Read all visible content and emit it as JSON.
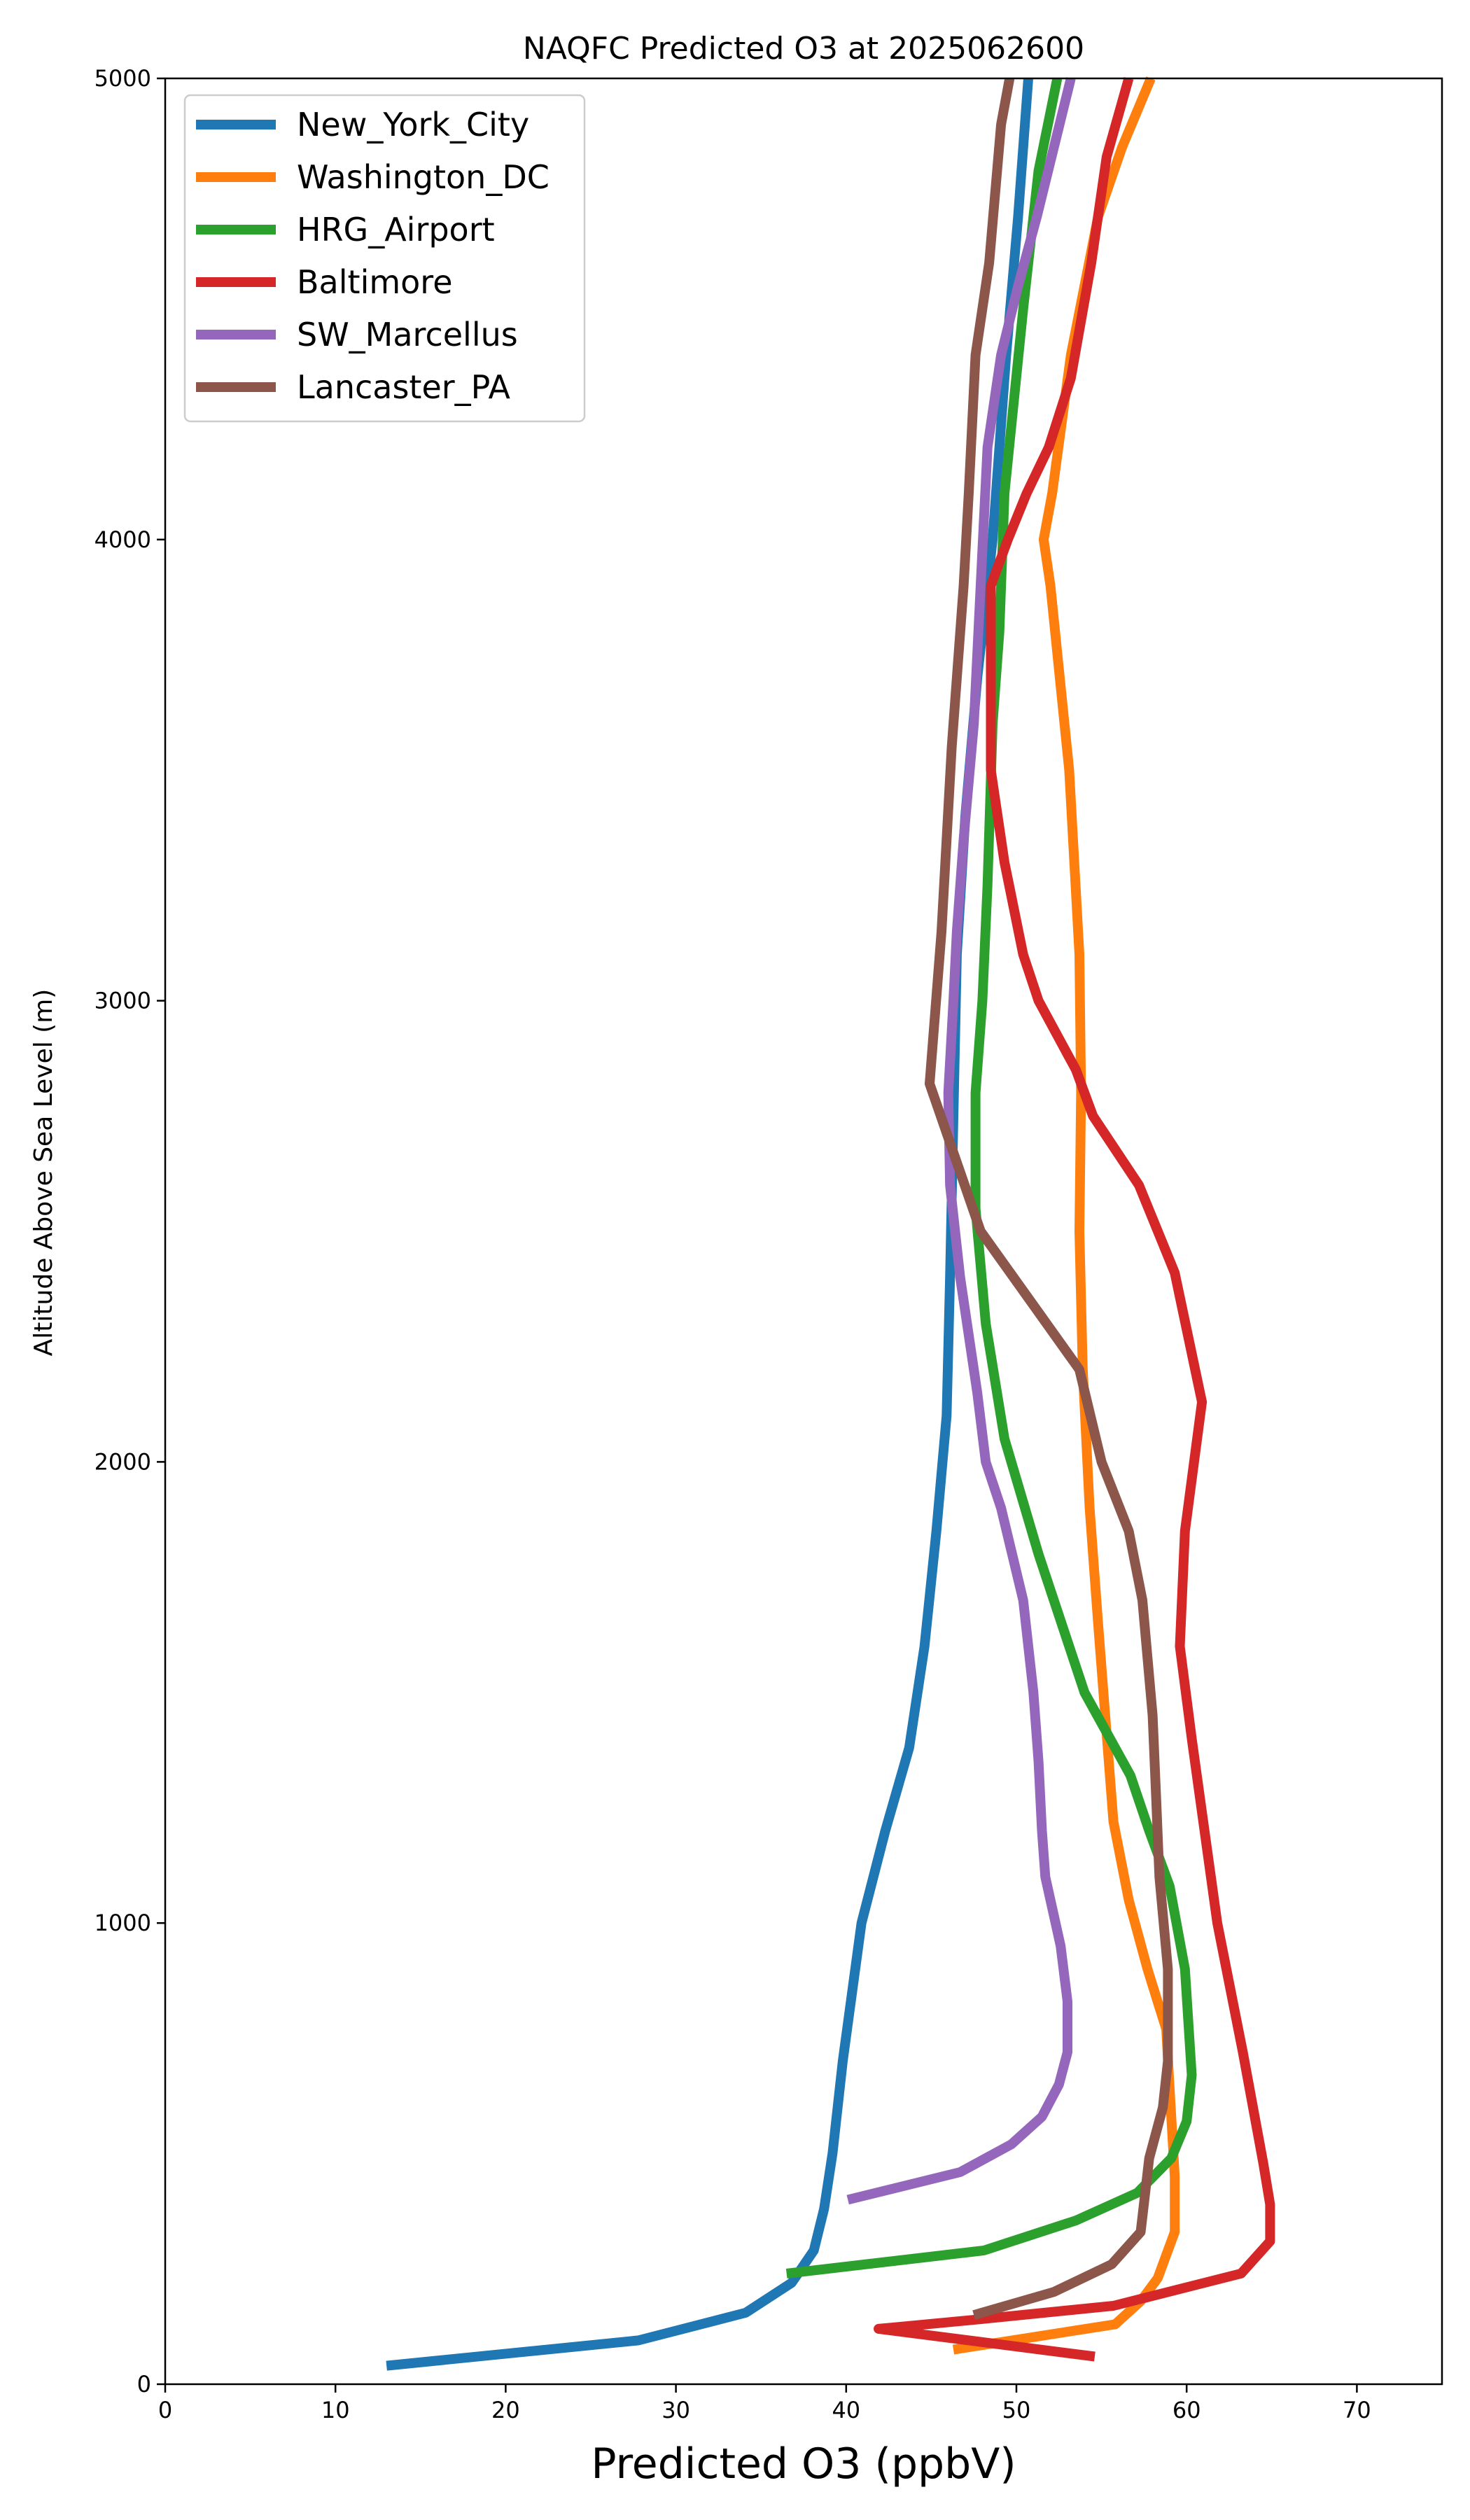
{
  "chart_data": {
    "type": "line",
    "title": "NAQFC Predicted O3 at 2025062600",
    "xlabel": "Predicted O3 (ppbV)",
    "ylabel": "Altitude Above Sea Level (m)",
    "xlim": [
      0,
      75
    ],
    "ylim": [
      0,
      5000
    ],
    "xticks": [
      "0",
      "10",
      "20",
      "30",
      "40",
      "50",
      "60",
      "70"
    ],
    "yticks": [
      "0",
      "1000",
      "2000",
      "3000",
      "4000",
      "5000"
    ],
    "grid": false,
    "legend": "top-left",
    "series": [
      {
        "name": "New_York_City",
        "color": "#1f77b4",
        "x": [
          13,
          27.8,
          34.1,
          36.8,
          38.1,
          38.7,
          39.2,
          39.8,
          40.9,
          42.3,
          43.7,
          44.6,
          45.3,
          45.9,
          46.1,
          46.5,
          47.0,
          47.7,
          48.6,
          49.4,
          50.1,
          50.7
        ],
        "y": [
          40,
          95,
          155,
          220,
          290,
          380,
          500,
          700,
          1000,
          1200,
          1380,
          1600,
          1850,
          2100,
          2400,
          3100,
          3400,
          3700,
          4000,
          4400,
          4700,
          5000
        ]
      },
      {
        "name": "Washington_DC",
        "color": "#ff7f0e",
        "x": [
          46.3,
          55.8,
          57.3,
          58.3,
          59.3,
          59.3,
          58.8,
          57.7,
          56.6,
          55.7,
          54.8,
          54.3,
          53.9,
          53.7,
          53.8,
          53.7,
          53.1,
          52.0,
          51.6,
          52.1,
          53.2,
          54.8,
          56.2,
          57.9
        ],
        "y": [
          75,
          130,
          180,
          230,
          330,
          450,
          770,
          900,
          1050,
          1220,
          1650,
          1900,
          2200,
          2500,
          2800,
          3100,
          3500,
          3900,
          4000,
          4100,
          4400,
          4700,
          4850,
          5000
        ]
      },
      {
        "name": "HRG_Airport",
        "color": "#2ca02c",
        "x": [
          36.5,
          48.1,
          53.5,
          57.1,
          59.1,
          60.0,
          60.3,
          59.9,
          59.0,
          57.8,
          56.7,
          54.0,
          51.3,
          49.3,
          48.2,
          47.6,
          47.6,
          48.0,
          48.3,
          48.6,
          49.0,
          49.3,
          50.4,
          51.3,
          52.4
        ],
        "y": [
          240,
          290,
          355,
          415,
          490,
          570,
          670,
          900,
          1080,
          1200,
          1320,
          1500,
          1800,
          2050,
          2300,
          2550,
          2800,
          3000,
          3250,
          3600,
          3800,
          4100,
          4500,
          4800,
          5000
        ]
      },
      {
        "name": "Baltimore",
        "color": "#d62728",
        "x": [
          54.6,
          41.9,
          47.6,
          55.7,
          63.2,
          64.9,
          64.9,
          64.5,
          63.3,
          61.8,
          60.3,
          59.6,
          59.9,
          60.9,
          59.3,
          57.2,
          54.5,
          53.5,
          51.3,
          50.4,
          49.3,
          48.5,
          48.5,
          49.5,
          50.6,
          51.9,
          53.2,
          54.4,
          55.3,
          56.6
        ],
        "y": [
          60,
          120,
          140,
          170,
          240,
          310,
          390,
          480,
          720,
          1000,
          1400,
          1600,
          1850,
          2130,
          2410,
          2600,
          2750,
          2850,
          3000,
          3100,
          3300,
          3500,
          3900,
          4000,
          4100,
          4200,
          4350,
          4600,
          4830,
          5000
        ]
      },
      {
        "name": "SW_Marcellus",
        "color": "#9467bd",
        "x": [
          40.1,
          46.7,
          49.7,
          51.5,
          52.5,
          53.0,
          53.0,
          52.6,
          51.7,
          51.5,
          51.3,
          51.0,
          50.4,
          49.1,
          48.2,
          47.7,
          46.7,
          46.1,
          46.0,
          46.3,
          46.5,
          46.9,
          47.5,
          47.9,
          48.3,
          49.1,
          50.1,
          51.2,
          52.2,
          53.2
        ],
        "y": [
          400,
          460,
          520,
          580,
          650,
          720,
          830,
          950,
          1100,
          1200,
          1350,
          1500,
          1700,
          1900,
          2000,
          2150,
          2400,
          2600,
          2800,
          3000,
          3150,
          3350,
          3600,
          3900,
          4200,
          4400,
          4550,
          4700,
          4850,
          5000
        ]
      },
      {
        "name": "Lancaster_PA",
        "color": "#8c564b",
        "x": [
          47.5,
          52.2,
          55.6,
          57.3,
          57.8,
          58.6,
          58.9,
          58.9,
          58.4,
          58.2,
          58.0,
          57.4,
          56.6,
          55.0,
          53.7,
          50.8,
          47.9,
          44.9,
          45.6,
          46.2,
          46.5,
          46.9,
          47.2,
          47.6,
          48.4,
          49.1,
          49.6
        ],
        "y": [
          150,
          200,
          260,
          330,
          490,
          600,
          700,
          900,
          1100,
          1280,
          1450,
          1700,
          1850,
          2000,
          2200,
          2350,
          2500,
          2820,
          3150,
          3550,
          3700,
          3900,
          4100,
          4400,
          4600,
          4900,
          5000
        ]
      }
    ]
  }
}
